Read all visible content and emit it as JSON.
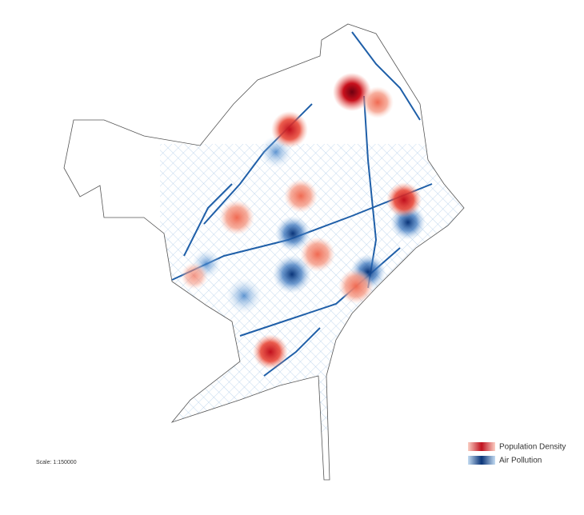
{
  "legend": {
    "items": [
      {
        "label": "Population Density"
      },
      {
        "label": "Air Pollution"
      }
    ]
  },
  "scale": "Scale: 1:150000"
}
